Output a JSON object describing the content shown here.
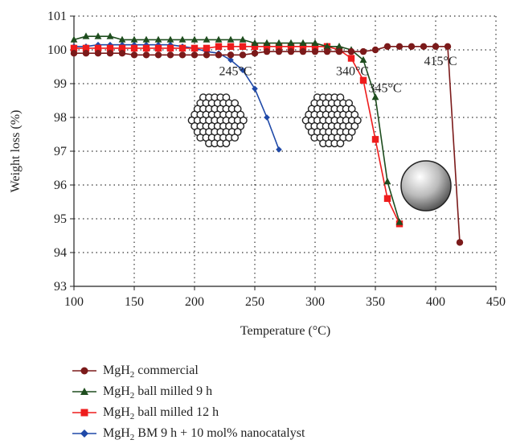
{
  "chart_data": {
    "type": "line",
    "title": "",
    "xlabel": "Temperature (°C)",
    "ylabel": "Weight loss (%)",
    "xlim": [
      100,
      450
    ],
    "ylim": [
      93,
      101
    ],
    "xticks": [
      100,
      150,
      200,
      250,
      300,
      350,
      400,
      450
    ],
    "yticks": [
      93,
      94,
      95,
      96,
      97,
      98,
      99,
      100,
      101
    ],
    "grid": "dotted horizontal and vertical",
    "legend_position": "bottom",
    "series": [
      {
        "name": "MgH2 commercial",
        "legend_main": "MgH",
        "legend_sub": "2",
        "legend_rest": " commercial",
        "color": "#7b1a1a",
        "marker": "circle",
        "x": [
          100,
          110,
          120,
          130,
          140,
          150,
          160,
          170,
          180,
          190,
          200,
          210,
          220,
          230,
          240,
          250,
          260,
          270,
          280,
          290,
          300,
          310,
          320,
          330,
          340,
          350,
          360,
          370,
          380,
          390,
          400,
          410,
          420
        ],
        "y": [
          99.9,
          99.9,
          99.9,
          99.9,
          99.9,
          99.85,
          99.85,
          99.85,
          99.85,
          99.85,
          99.85,
          99.85,
          99.85,
          99.85,
          99.85,
          99.9,
          99.95,
          99.95,
          99.95,
          99.95,
          99.95,
          99.95,
          99.95,
          99.95,
          99.95,
          100.0,
          100.1,
          100.1,
          100.1,
          100.1,
          100.1,
          100.1,
          94.3
        ]
      },
      {
        "name": "MgH2 ball milled 9 h",
        "legend_main": "MgH",
        "legend_sub": "2",
        "legend_rest": " ball milled 9 h",
        "color": "#1e4d1e",
        "marker": "triangle",
        "x": [
          100,
          110,
          120,
          130,
          140,
          150,
          160,
          170,
          180,
          190,
          200,
          210,
          220,
          230,
          240,
          250,
          260,
          270,
          280,
          290,
          300,
          310,
          320,
          330,
          340,
          350,
          360,
          370
        ],
        "y": [
          100.3,
          100.4,
          100.4,
          100.4,
          100.3,
          100.3,
          100.3,
          100.3,
          100.3,
          100.3,
          100.3,
          100.3,
          100.3,
          100.3,
          100.3,
          100.2,
          100.2,
          100.2,
          100.2,
          100.2,
          100.2,
          100.1,
          100.1,
          100.0,
          99.7,
          98.6,
          96.1,
          94.9
        ]
      },
      {
        "name": "MgH2 ball milled 12 h",
        "legend_main": "MgH",
        "legend_sub": "2",
        "legend_rest": " ball milled 12 h",
        "color": "#ee1c1c",
        "marker": "square",
        "x": [
          100,
          110,
          120,
          130,
          140,
          150,
          160,
          170,
          180,
          190,
          200,
          210,
          220,
          230,
          240,
          250,
          260,
          270,
          280,
          290,
          300,
          310,
          320,
          330,
          340,
          350,
          360,
          370
        ],
        "y": [
          100.05,
          100.05,
          100.05,
          100.05,
          100.05,
          100.05,
          100.05,
          100.05,
          100.05,
          100.05,
          100.05,
          100.05,
          100.1,
          100.1,
          100.1,
          100.1,
          100.1,
          100.1,
          100.1,
          100.1,
          100.1,
          100.1,
          100.0,
          99.75,
          99.1,
          97.35,
          95.6,
          94.85
        ]
      },
      {
        "name": "MgH2 BM 9 h + 10 mol% nanocatalyst",
        "legend_main": "MgH",
        "legend_sub": "2",
        "legend_rest": " BM 9 h + 10 mol% nanocatalyst",
        "color": "#1f49a8",
        "marker": "diamond",
        "x": [
          100,
          110,
          120,
          130,
          140,
          150,
          160,
          170,
          180,
          190,
          200,
          210,
          220,
          230,
          240,
          250,
          260,
          270
        ],
        "y": [
          100.1,
          100.1,
          100.15,
          100.15,
          100.15,
          100.15,
          100.15,
          100.15,
          100.15,
          100.1,
          100.05,
          99.95,
          99.9,
          99.7,
          99.4,
          98.85,
          98.0,
          97.05
        ]
      }
    ],
    "annotations": [
      {
        "text": "245°C",
        "x": 234,
        "y": 99.25
      },
      {
        "text": "340°C",
        "x": 331,
        "y": 99.25
      },
      {
        "text": "345°C",
        "x": 358,
        "y": 98.75
      },
      {
        "text": "415°C",
        "x": 404,
        "y": 99.55
      }
    ]
  }
}
